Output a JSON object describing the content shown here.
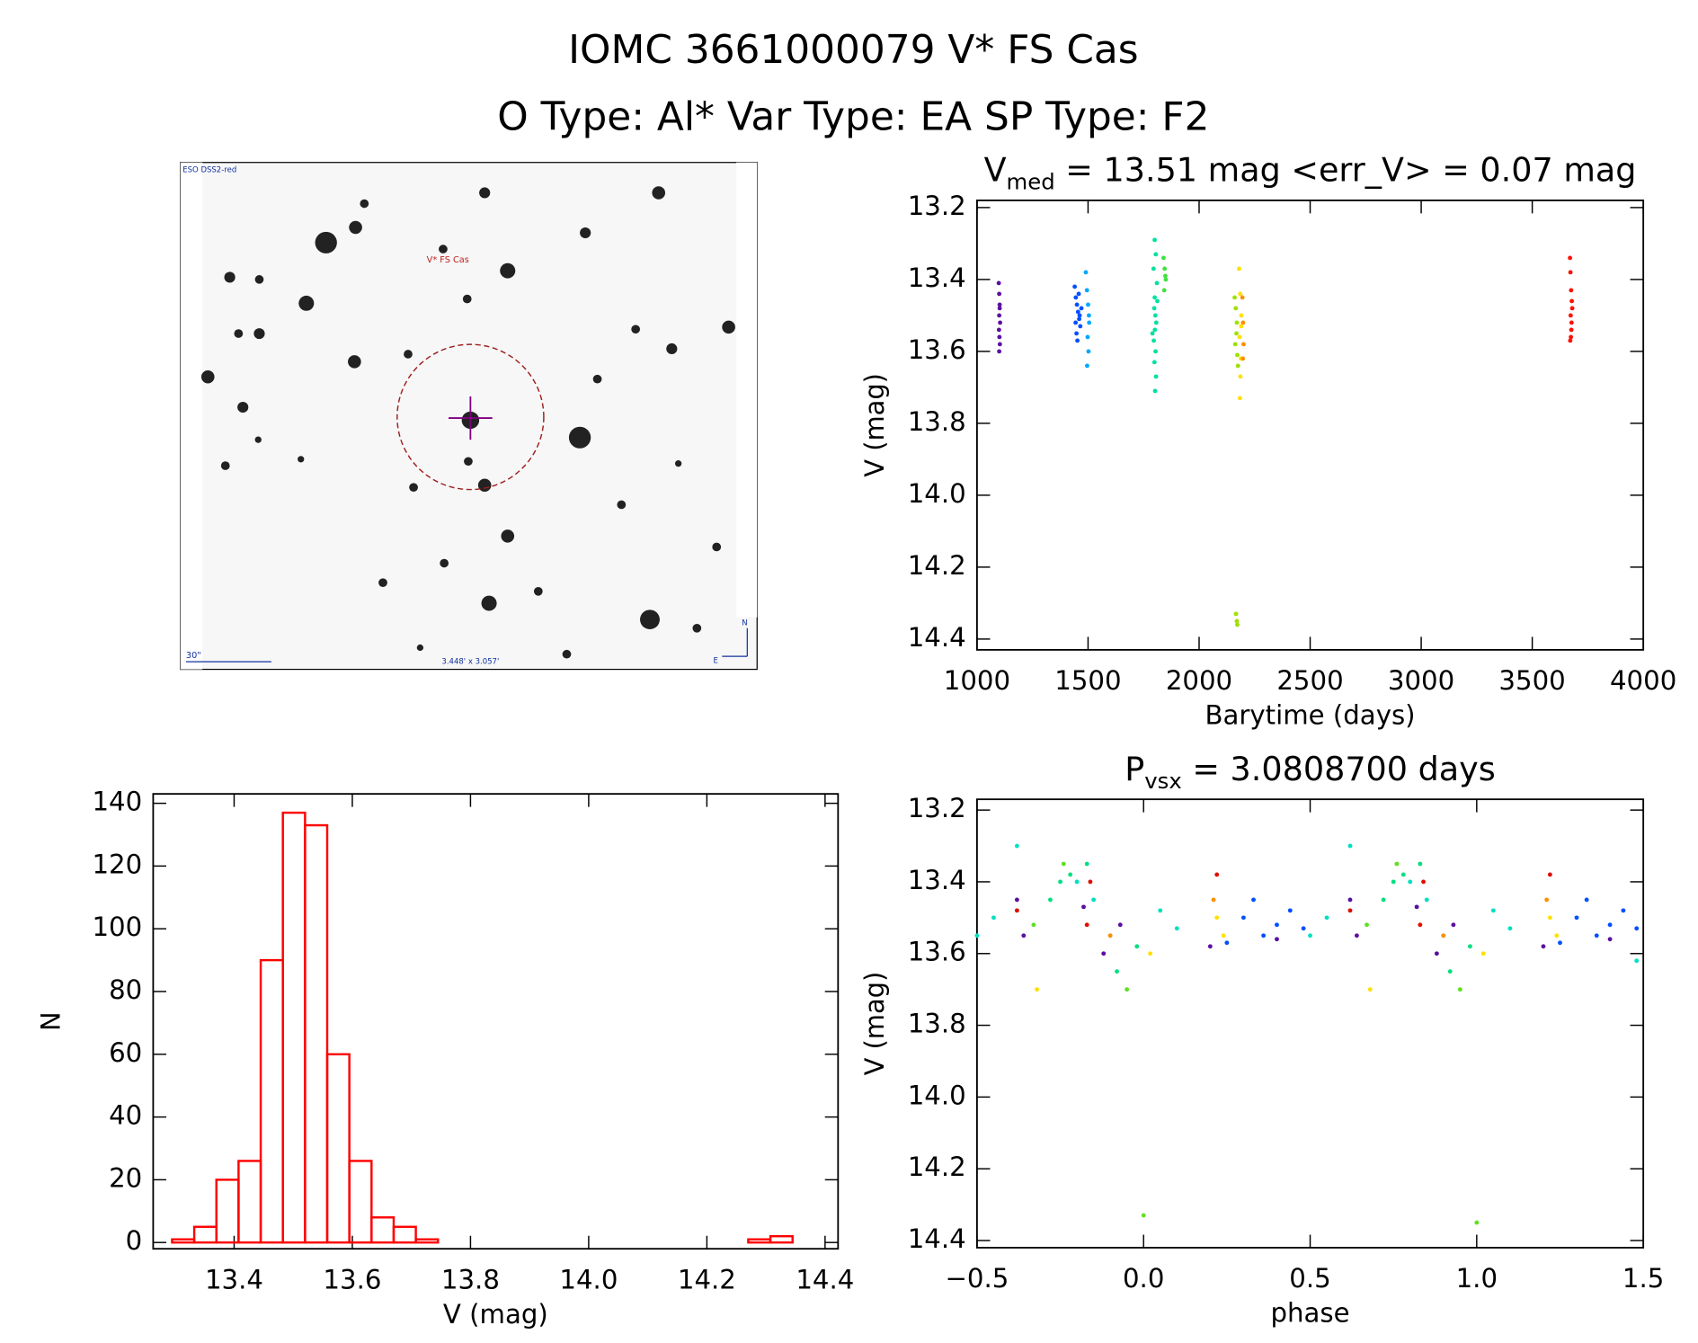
{
  "title": "IOMC 3661000079   V* FS Cas",
  "subtitle": "O Type: Al*  Var Type: EA  SP Type: F2",
  "image_panel": {
    "survey": "ESO DSS2-red",
    "target": "V* FS Cas",
    "scale": "30\"",
    "field": "3.448' x 3.057'",
    "north": "N",
    "east": "E"
  },
  "chart_data": [
    {
      "type": "scatter",
      "title": {
        "text": "V",
        "sub": "med",
        "rest": " = 13.51 mag <err_V> = 0.07 mag"
      },
      "x_label": "Barytime (days)",
      "y_label": "V (mag)",
      "xlim": [
        1000,
        4000
      ],
      "ylim": [
        14.43,
        13.18
      ],
      "xticks": [
        1000,
        1500,
        2000,
        2500,
        3000,
        3500,
        4000
      ],
      "yticks": [
        13.2,
        13.4,
        13.6,
        13.8,
        {
          "value": 14,
          "label": "14.0"
        },
        14.2,
        14.4
      ],
      "series": [
        {
          "color": "#5b0fa0",
          "x": [
            1098,
            1100,
            1102,
            1100,
            1104,
            1099,
            1101,
            1103,
            1100,
            1102
          ],
          "values": [
            13.41,
            13.44,
            13.47,
            13.5,
            13.52,
            13.54,
            13.56,
            13.58,
            13.6,
            13.48
          ]
        },
        {
          "color": "#0050ff",
          "x": [
            1440,
            1445,
            1450,
            1455,
            1460,
            1465,
            1448,
            1452,
            1458,
            1462,
            1470,
            1444
          ],
          "values": [
            13.42,
            13.45,
            13.47,
            13.49,
            13.51,
            13.53,
            13.55,
            13.57,
            13.44,
            13.5,
            13.48,
            13.52
          ]
        },
        {
          "color": "#00a8ff",
          "x": [
            1490,
            1495,
            1500,
            1505,
            1498,
            1502,
            1496,
            1504
          ],
          "values": [
            13.38,
            13.43,
            13.47,
            13.52,
            13.56,
            13.6,
            13.64,
            13.5
          ]
        },
        {
          "color": "#00e0a0",
          "x": [
            1800,
            1805,
            1795,
            1810,
            1800,
            1798,
            1803,
            1807,
            1801,
            1796,
            1804,
            1799,
            1806,
            1802,
            1812,
            1790
          ],
          "values": [
            13.29,
            13.33,
            13.37,
            13.41,
            13.45,
            13.48,
            13.5,
            13.52,
            13.54,
            13.57,
            13.6,
            13.63,
            13.67,
            13.71,
            13.46,
            13.55
          ]
        },
        {
          "color": "#40e040",
          "x": [
            1840,
            1845,
            1850,
            1843,
            1848
          ],
          "values": [
            13.34,
            13.37,
            13.4,
            13.43,
            13.39
          ]
        },
        {
          "color": "#a0e000",
          "x": [
            2160,
            2165,
            2170,
            2168,
            2163,
            2172,
            2175,
            2166,
            2170,
            2172
          ],
          "values": [
            13.45,
            13.48,
            13.52,
            13.55,
            13.58,
            13.61,
            13.64,
            14.33,
            14.35,
            14.36
          ]
        },
        {
          "color": "#ffe000",
          "x": [
            2180,
            2185,
            2190,
            2182,
            2188,
            2186,
            2184,
            2190
          ],
          "values": [
            13.37,
            13.44,
            13.5,
            13.56,
            13.62,
            13.67,
            13.73,
            13.53
          ]
        },
        {
          "color": "#ff9000",
          "x": [
            2195,
            2198,
            2200,
            2197
          ],
          "values": [
            13.45,
            13.52,
            13.58,
            13.62
          ]
        },
        {
          "color": "#ff1000",
          "x": [
            3670,
            3672,
            3675,
            3678,
            3680,
            3673,
            3677,
            3676,
            3674,
            3671
          ],
          "values": [
            13.34,
            13.38,
            13.43,
            13.46,
            13.48,
            13.5,
            13.52,
            13.54,
            13.56,
            13.57
          ]
        }
      ]
    },
    {
      "type": "histogram",
      "x_label": "V (mag)",
      "y_label": "N",
      "color": "#ff0000",
      "xlim": [
        13.263,
        14.422
      ],
      "ylim": [
        -2,
        143
      ],
      "xticks": [
        13.4,
        13.6,
        13.8,
        {
          "value": 14,
          "label": "14.0"
        },
        14.2,
        14.4
      ],
      "yticks": [
        0,
        20,
        40,
        60,
        80,
        100,
        120,
        140
      ],
      "bins": [
        13.295,
        13.3325,
        13.37,
        13.4075,
        13.445,
        13.4825,
        13.52,
        13.5575,
        13.595,
        13.6325,
        13.67,
        13.7075,
        13.745,
        13.7825,
        13.82,
        13.8575,
        13.895,
        13.9325,
        13.97,
        14.0075,
        14.045,
        14.0825,
        14.12,
        14.1575,
        14.195,
        14.2325,
        14.27,
        14.3075,
        14.345
      ],
      "values": [
        1,
        5,
        20,
        26,
        90,
        137,
        133,
        60,
        26,
        8,
        5,
        1,
        0,
        0,
        0,
        0,
        0,
        0,
        0,
        0,
        0,
        0,
        0,
        0,
        0,
        0,
        1,
        2
      ]
    },
    {
      "type": "scatter",
      "title": {
        "text": "P",
        "sub": "vsx",
        "rest": " = 3.0808700 days"
      },
      "x_label": "phase",
      "y_label": "V (mag)",
      "xlim": [
        -0.5,
        1.5
      ],
      "ylim": [
        14.42,
        13.17
      ],
      "xticks": [
        {
          "value": -0.5,
          "label": "−0.5"
        },
        {
          "value": 0,
          "label": "0.0"
        },
        0.5,
        {
          "value": 1,
          "label": "1.0"
        },
        1.5
      ],
      "yticks": [
        13.2,
        13.4,
        13.6,
        13.8,
        {
          "value": 14,
          "label": "14.0"
        },
        14.2,
        14.4
      ],
      "series": [
        {
          "color": "#5b0fa0",
          "x": [
            -0.38,
            -0.36,
            -0.18,
            -0.12,
            -0.07,
            0.62,
            0.64,
            0.82,
            0.88,
            0.93,
            0.2,
            0.4,
            1.2,
            1.4
          ],
          "values": [
            13.45,
            13.55,
            13.47,
            13.6,
            13.52,
            13.45,
            13.55,
            13.47,
            13.6,
            13.52,
            13.58,
            13.56,
            13.58,
            13.56
          ]
        },
        {
          "color": "#0050ff",
          "x": [
            0.3,
            0.33,
            0.36,
            0.4,
            0.44,
            0.48,
            1.3,
            1.33,
            1.36,
            1.4,
            1.44,
            1.48,
            0.25,
            1.25
          ],
          "values": [
            13.5,
            13.45,
            13.55,
            13.52,
            13.48,
            13.53,
            13.5,
            13.45,
            13.55,
            13.52,
            13.48,
            13.53,
            13.57,
            13.57
          ]
        },
        {
          "color": "#00e0c0",
          "x": [
            -0.5,
            -0.45,
            -0.38,
            -0.2,
            -0.15,
            -0.1,
            0.05,
            0.1,
            0.5,
            0.55,
            0.62,
            0.8,
            0.85,
            0.9,
            1.05,
            1.1,
            1.48
          ],
          "values": [
            13.55,
            13.5,
            13.3,
            13.4,
            13.45,
            13.55,
            13.48,
            13.53,
            13.55,
            13.5,
            13.3,
            13.4,
            13.45,
            13.55,
            13.48,
            13.53,
            13.62
          ]
        },
        {
          "color": "#00e080",
          "x": [
            -0.28,
            -0.25,
            -0.22,
            -0.17,
            -0.08,
            0.72,
            0.75,
            0.78,
            0.83,
            0.92,
            -0.02,
            0.98
          ],
          "values": [
            13.45,
            13.4,
            13.38,
            13.35,
            13.65,
            13.45,
            13.4,
            13.38,
            13.35,
            13.65,
            13.58,
            13.58
          ]
        },
        {
          "color": "#60e020",
          "x": [
            -0.33,
            -0.24,
            -0.05,
            0.67,
            0.76,
            0.95,
            0,
            1
          ],
          "values": [
            13.52,
            13.35,
            13.7,
            13.52,
            13.35,
            13.7,
            14.33,
            14.35
          ]
        },
        {
          "color": "#ffe000",
          "x": [
            -0.32,
            0.02,
            0.22,
            0.24,
            0.68,
            1.02,
            1.22,
            1.24
          ],
          "values": [
            13.7,
            13.6,
            13.5,
            13.55,
            13.7,
            13.6,
            13.5,
            13.55
          ]
        },
        {
          "color": "#ff9000",
          "x": [
            -0.1,
            0.21,
            0.9,
            1.21
          ],
          "values": [
            13.55,
            13.45,
            13.55,
            13.45
          ]
        },
        {
          "color": "#e01000",
          "x": [
            -0.38,
            -0.16,
            0.22,
            0.62,
            0.84,
            1.22,
            -0.17,
            0.83
          ],
          "values": [
            13.48,
            13.4,
            13.38,
            13.48,
            13.4,
            13.38,
            13.52,
            13.52
          ]
        }
      ]
    }
  ]
}
